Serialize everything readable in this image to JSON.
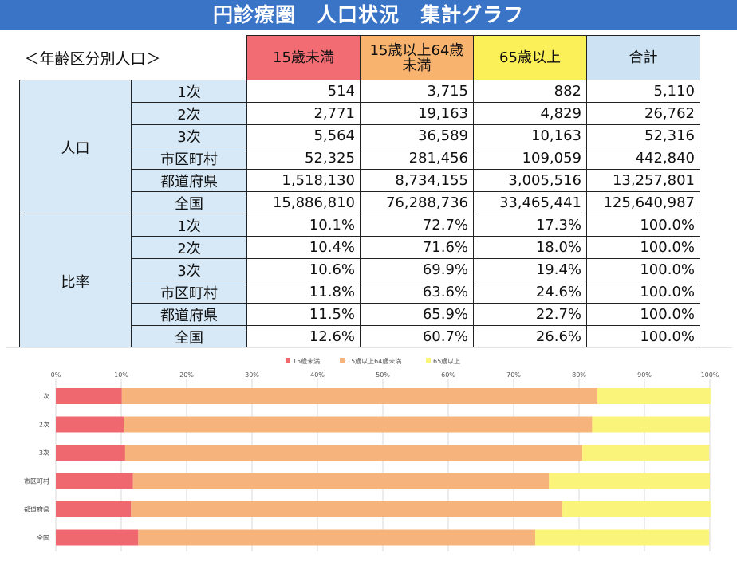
{
  "title": "円診療圏　人口状況　集計グラフ",
  "section_label": "＜年齢区分別人口＞",
  "table": {
    "columns": [
      "15歳未満",
      "15歳以上64歳未満",
      "65歳以上",
      "合計"
    ],
    "groups": [
      {
        "label": "人口",
        "rows": [
          {
            "label": "1次",
            "values": [
              "514",
              "3,715",
              "882",
              "5,110"
            ]
          },
          {
            "label": "2次",
            "values": [
              "2,771",
              "19,163",
              "4,829",
              "26,762"
            ]
          },
          {
            "label": "3次",
            "values": [
              "5,564",
              "36,589",
              "10,163",
              "52,316"
            ]
          },
          {
            "label": "市区町村",
            "values": [
              "52,325",
              "281,456",
              "109,059",
              "442,840"
            ]
          },
          {
            "label": "都道府県",
            "values": [
              "1,518,130",
              "8,734,155",
              "3,005,516",
              "13,257,801"
            ]
          },
          {
            "label": "全国",
            "values": [
              "15,886,810",
              "76,288,736",
              "33,465,441",
              "125,640,987"
            ]
          }
        ]
      },
      {
        "label": "比率",
        "rows": [
          {
            "label": "1次",
            "values": [
              "10.1%",
              "72.7%",
              "17.3%",
              "100.0%"
            ]
          },
          {
            "label": "2次",
            "values": [
              "10.4%",
              "71.6%",
              "18.0%",
              "100.0%"
            ]
          },
          {
            "label": "3次",
            "values": [
              "10.6%",
              "69.9%",
              "19.4%",
              "100.0%"
            ]
          },
          {
            "label": "市区町村",
            "values": [
              "11.8%",
              "63.6%",
              "24.6%",
              "100.0%"
            ]
          },
          {
            "label": "都道府県",
            "values": [
              "11.5%",
              "65.9%",
              "22.7%",
              "100.0%"
            ]
          },
          {
            "label": "全国",
            "values": [
              "12.6%",
              "60.7%",
              "26.6%",
              "100.0%"
            ]
          }
        ]
      }
    ]
  },
  "colors": {
    "under15": "#f0686f",
    "mid": "#f6b47c",
    "over65": "#fbf47a",
    "header_red": "#f26c73",
    "header_orange": "#f8b36e",
    "header_yellow": "#fbf057",
    "header_blue": "#cde3f3",
    "title_bg": "#3a74c7"
  },
  "chart_data": {
    "type": "bar",
    "orientation": "horizontal",
    "stacked": true,
    "categories": [
      "1次",
      "2次",
      "3次",
      "市区町村",
      "都道府県",
      "全国"
    ],
    "series": [
      {
        "name": "15歳未満",
        "values": [
          10.1,
          10.4,
          10.6,
          11.8,
          11.5,
          12.6
        ]
      },
      {
        "name": "15歳以上64歳未満",
        "values": [
          72.7,
          71.6,
          69.9,
          63.6,
          65.9,
          60.7
        ]
      },
      {
        "name": "65歳以上",
        "values": [
          17.3,
          18.0,
          19.4,
          24.6,
          22.7,
          26.6
        ]
      }
    ],
    "xlim": [
      0,
      100
    ],
    "x_ticks": [
      "0%",
      "10%",
      "20%",
      "30%",
      "40%",
      "50%",
      "60%",
      "70%",
      "80%",
      "90%",
      "100%"
    ],
    "grid": true,
    "legend_position": "top"
  }
}
